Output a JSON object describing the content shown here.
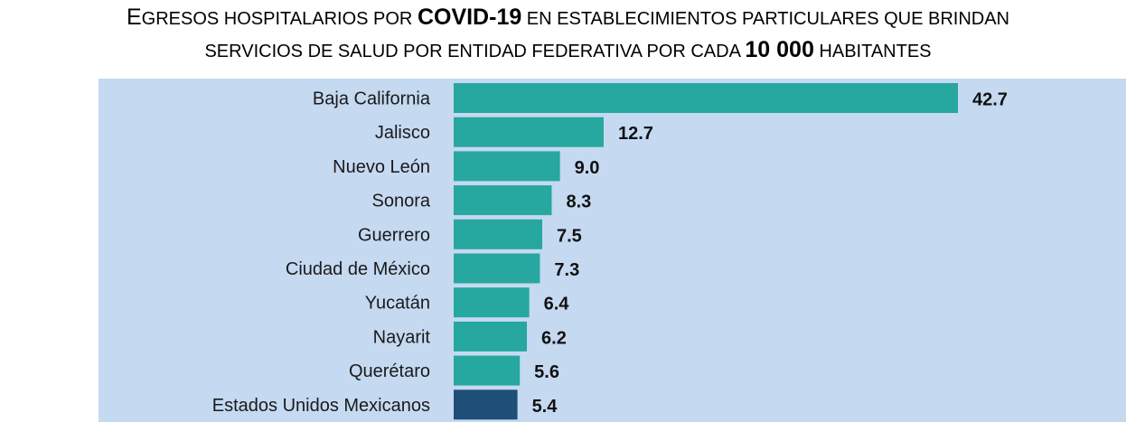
{
  "title": {
    "line1": {
      "initial": "E",
      "part1": "GRESOS HOSPITALARIOS POR ",
      "highlight": "COVID-19",
      "part2": " EN ESTABLECIMIENTOS PARTICULARES QUE BRINDAN"
    },
    "line2": {
      "part1": "SERVICIOS DE SALUD POR ENTIDAD FEDERATIVA POR CADA ",
      "highlight": "10 000",
      "part2": " HABITANTES"
    }
  },
  "chart_data": {
    "type": "bar",
    "orientation": "horizontal",
    "title": "EGRESOS HOSPITALARIOS POR COVID-19 EN ESTABLECIMIENTOS PARTICULARES QUE BRINDAN SERVICIOS DE SALUD POR ENTIDAD FEDERATIVA POR CADA 10 000 HABITANTES",
    "xlabel": "",
    "ylabel": "",
    "categories": [
      "Baja California",
      "Jalisco",
      "Nuevo León",
      "Sonora",
      "Guerrero",
      "Ciudad de México",
      "Yucatán",
      "Nayarit",
      "Querétaro",
      "Estados Unidos Mexicanos"
    ],
    "values": [
      42.7,
      12.7,
      9.0,
      8.3,
      7.5,
      7.3,
      6.4,
      6.2,
      5.6,
      5.4
    ],
    "value_labels": [
      "42.7",
      "12.7",
      "9.0",
      "8.3",
      "7.5",
      "7.3",
      "6.4",
      "6.2",
      "5.6",
      "5.4"
    ],
    "xlim": [
      0,
      42.7
    ],
    "grid": false,
    "legend": "none",
    "colors": {
      "background": "#c5d9f1",
      "bar": "#26a79f",
      "highlight_bar": "#1f4e79",
      "highlight_category": "Estados Unidos Mexicanos"
    }
  }
}
